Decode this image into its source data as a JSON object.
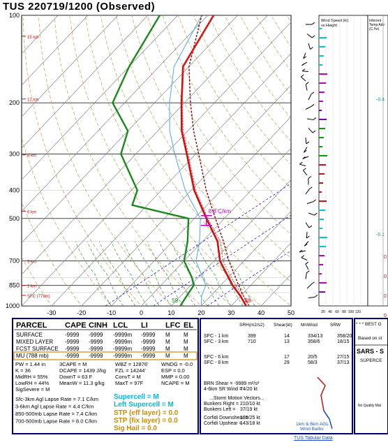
{
  "header": {
    "title": "TUS   220719/1200  (Observed)"
  },
  "colors": {
    "temp": "#d01010",
    "dewpoint": "#1a8a1a",
    "parcel": "#8b0000",
    "wetbulb": "#4da6ff",
    "virtual": "#ff3030",
    "isotherm": "#777777",
    "moist_adiabat": "#2ca02c",
    "dry_adiabat": "#d2a76a",
    "mixing_ratio": "#1a1aff",
    "panel_border": "#000080"
  },
  "chart_data": {
    "type": "line",
    "title": "TUS   220719/1200  (Observed)",
    "y_axis": {
      "scale": "log",
      "range_mb": [
        1000,
        100
      ],
      "ticks": [
        "100",
        "200",
        "300",
        "400",
        "500",
        "700",
        "850",
        "1000"
      ]
    },
    "x_axis": {
      "range_c": [
        -40,
        50
      ],
      "skew": true,
      "ticks": [
        "-30",
        "-20",
        "-10",
        "0",
        "10",
        "20",
        "30",
        "40",
        "50"
      ]
    },
    "height_labels": [
      "15 km",
      "12 km",
      "9 km",
      "6 km",
      "3 km",
      "1 km",
      "SFC (779m)"
    ],
    "height_label_pressures": [
      118,
      194,
      302,
      472,
      700,
      850,
      920
    ],
    "series": [
      {
        "key": "temp",
        "points": [
          [
            1000,
            35
          ],
          [
            925,
            30
          ],
          [
            850,
            24
          ],
          [
            700,
            12
          ],
          [
            600,
            5
          ],
          [
            500,
            -6
          ],
          [
            400,
            -19
          ],
          [
            300,
            -33
          ],
          [
            250,
            -42
          ],
          [
            200,
            -51
          ],
          [
            150,
            -62
          ],
          [
            100,
            -68
          ]
        ]
      },
      {
        "key": "virtual",
        "points": [
          [
            1000,
            36
          ],
          [
            925,
            31
          ],
          [
            850,
            25
          ],
          [
            700,
            13
          ],
          [
            600,
            6
          ],
          [
            500,
            -5.5
          ],
          [
            400,
            -18.5
          ],
          [
            300,
            -32.5
          ],
          [
            250,
            -41.5
          ],
          [
            200,
            -50.7
          ],
          [
            150,
            -61.8
          ],
          [
            100,
            -67.9
          ]
        ]
      },
      {
        "key": "dewpoint",
        "points": [
          [
            1000,
            13
          ],
          [
            925,
            12
          ],
          [
            850,
            11
          ],
          [
            800,
            8
          ],
          [
            700,
            0
          ],
          [
            600,
            -5
          ],
          [
            500,
            -12
          ],
          [
            450,
            -35
          ],
          [
            400,
            -38
          ],
          [
            300,
            -55
          ],
          [
            250,
            -60
          ],
          [
            200,
            -74
          ],
          [
            150,
            -80
          ],
          [
            100,
            -86
          ]
        ]
      },
      {
        "key": "wetbulb",
        "points": [
          [
            1000,
            20
          ],
          [
            925,
            17
          ],
          [
            850,
            15
          ],
          [
            700,
            4
          ],
          [
            600,
            -1
          ],
          [
            500,
            -8
          ],
          [
            400,
            -22
          ],
          [
            300,
            -37
          ],
          [
            250,
            -46
          ],
          [
            200,
            -55
          ],
          [
            150,
            -65
          ],
          [
            100,
            -72
          ]
        ]
      },
      {
        "key": "parcel",
        "points": [
          [
            1000,
            36
          ],
          [
            925,
            31
          ],
          [
            850,
            26
          ],
          [
            700,
            15
          ],
          [
            600,
            7
          ],
          [
            500,
            -3
          ],
          [
            400,
            -15
          ],
          [
            300,
            -29
          ],
          [
            250,
            -38
          ],
          [
            200,
            -48
          ],
          [
            150,
            -60
          ],
          [
            100,
            -72
          ]
        ]
      }
    ],
    "annotations": {
      "lapse": "8.8 C/km",
      "surface_temp": "88",
      "surface_dewpoint": "59"
    },
    "wind_panel": {
      "title": "Wind Speed (kt) vs Height",
      "x_ticks": [
        "20",
        "40",
        "60",
        "80",
        "100",
        "120"
      ]
    },
    "temp_adv_panel": {
      "title": "Inferred Temp Advection (C/hr)",
      "values": [
        "-0.4",
        "-0.1"
      ],
      "value_pressures": [
        194,
        565
      ]
    }
  },
  "parcel_table": {
    "headers": [
      "PARCEL",
      "CAPE",
      "CINH",
      "LCL",
      "LI",
      "LFC",
      "EL"
    ],
    "rows": [
      [
        "SURFACE",
        "-9999",
        "-9999",
        "-9999m",
        "-9999",
        "M",
        "M"
      ],
      [
        "MIXED LAYER",
        "-9999",
        "-9999",
        "-9999m",
        "-9999",
        "M",
        "M"
      ],
      [
        "FCST SURFACE",
        "-9999",
        "-9999",
        "-9999m",
        "-9999",
        "M",
        "M"
      ],
      [
        "MU   (788 mb)",
        "-9999",
        "-9999",
        "-9999m",
        "-9999",
        "M",
        "M"
      ]
    ]
  },
  "indices": {
    "c1": [
      "PW = 1.44 in",
      "K = 36",
      "MidRH = 55%",
      "LowRH = 44%",
      "SigSevere = M"
    ],
    "c2": [
      "3CAPE = M",
      "DCAPE = 1439 J/kg",
      "DownT = 63 F",
      "MeanW = 11.3 g/kg"
    ],
    "c3": [
      "WBZ = 12876'",
      "FZL = 14244'",
      "ConvT = M",
      "MaxT = 97F"
    ],
    "c4": [
      "WNDG = -0.0",
      "ESP = 0.0",
      "MMP = 0.00",
      "NCAPE = M"
    ]
  },
  "lapse_rates": [
    "Sfc-3km Agl Lapse Rate = 7.1 C/km",
    "3-6km Agl Lapse Rate = 4.4 C/km",
    "850-500mb Lapse Rate = 7.4 C/km",
    "700-500mb Lapse Rate = 8.0 C/km"
  ],
  "composite": {
    "supercell": "Supercell = M",
    "left_supercell": "Left Supercell = M",
    "stp_eff": "STP (eff layer) = 0.0",
    "stp_fix": "STP (fix layer) = 0.0",
    "sig_hail": "Sig Hail = 0.0"
  },
  "kinematics": {
    "headers": [
      "SRH(m2/s2)",
      "Shear(kt)",
      "MnWind",
      "SRW"
    ],
    "rows": [
      [
        "SFC - 1 km",
        "399",
        "14",
        "334/13",
        "358/20"
      ],
      [
        "SFC - 3 km",
        "710",
        "13",
        "358/6",
        "18/15"
      ],
      [
        "SFC - 6 km",
        "",
        "17",
        "20/5",
        "27/15"
      ],
      [
        "SFC - 8 km",
        "",
        "29",
        "58/3",
        "37/13"
      ]
    ],
    "brn": "BRN Shear = -9999 m²/s²",
    "srw48": "4-6km SR Wind =",
    "srw48_val": "74/20 kt",
    "storm_motion": "...Storm Motion Vectors...",
    "bunkers_right": "Bunkers Right =",
    "bunkers_right_val": "210/10 kt",
    "bunkers_left": "Bunkers Left =",
    "bunkers_left_val": "37/19 kt",
    "corfidi_down": "Corfidi Downshear =",
    "corfidi_down_val": "135/25 kt",
    "corfidi_up": "Corfidi Upshear =",
    "corfidi_up_val": "143/18 kt",
    "hodo_caption": [
      "1km & 6km AGL",
      "Wind Barbs"
    ]
  },
  "best_guess": {
    "title": "* * * BEST G",
    "based": "Based on st",
    "sars": "SARS - S",
    "supercell": "SUPERCE",
    "no_quality": "No Quality Mat"
  },
  "footer": {
    "link": "TUS Tabular Data"
  }
}
